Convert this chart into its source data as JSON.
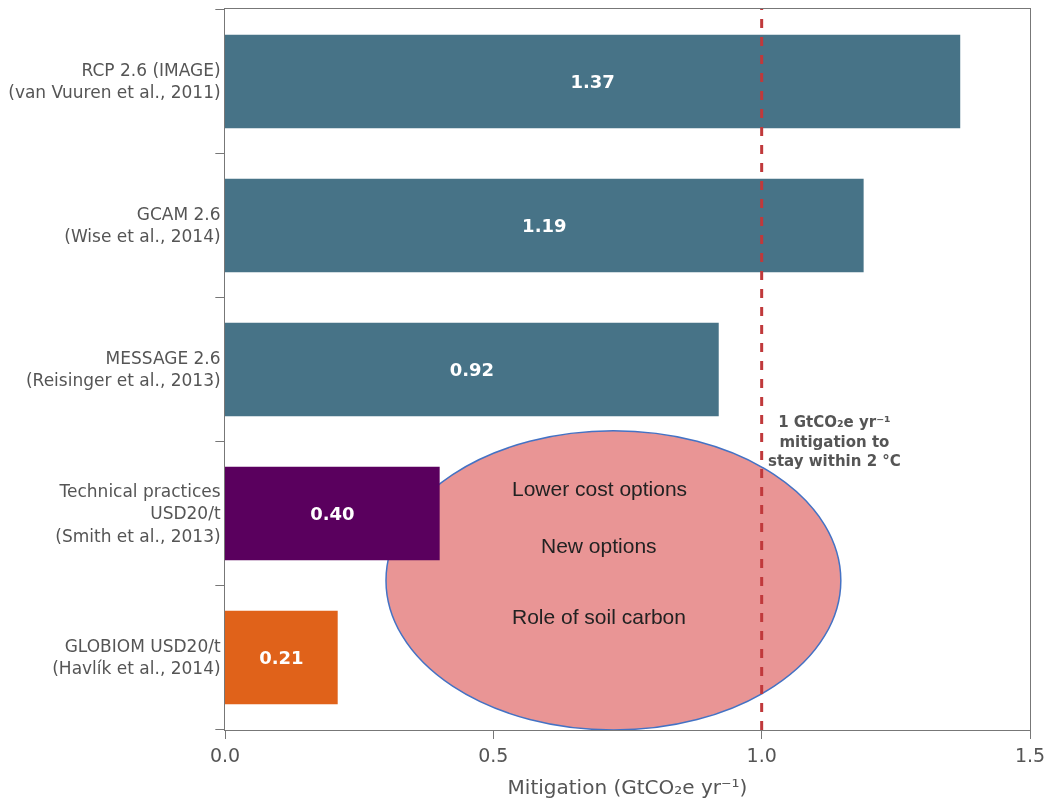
{
  "chart_data": {
    "type": "bar",
    "orientation": "horizontal",
    "xlabel": "Mitigation (GtCO₂e yr⁻¹)",
    "categories": [
      "RCP 2.6 (IMAGE)\n(van Vuuren et al., 2011)",
      "GCAM 2.6\n(Wise et al., 2014)",
      "MESSAGE 2.6\n(Reisinger et al., 2013)",
      "Technical practices\nUSD20/t\n(Smith et al., 2013)",
      "GLOBIOM USD20/t\n(Havlík et al., 2014)"
    ],
    "values": [
      1.37,
      1.19,
      0.92,
      0.4,
      0.21
    ],
    "value_labels": [
      "1.37",
      "1.19",
      "0.92",
      "0.40",
      "0.21"
    ],
    "colors": [
      "#477387",
      "#477387",
      "#477387",
      "#5a005e",
      "#e0621a"
    ],
    "xlim": [
      0,
      1.5
    ],
    "xticks": [
      {
        "value": 0,
        "label": "0.0"
      },
      {
        "value": 0.5,
        "label": "0.5"
      },
      {
        "value": 1.0,
        "label": "1.0"
      },
      {
        "value": 1.5,
        "label": "1.5"
      }
    ],
    "grid": false,
    "ref_lines": [
      {
        "axis": "x",
        "value": 1.0,
        "label": "1 GtCO₂e yr⁻¹\nmitigation to\nstay within 2 °C",
        "color": "#c0393b",
        "line_style": "dashed"
      }
    ],
    "annotations": [
      "Lower cost options",
      "New options",
      "Role of soil carbon"
    ]
  }
}
